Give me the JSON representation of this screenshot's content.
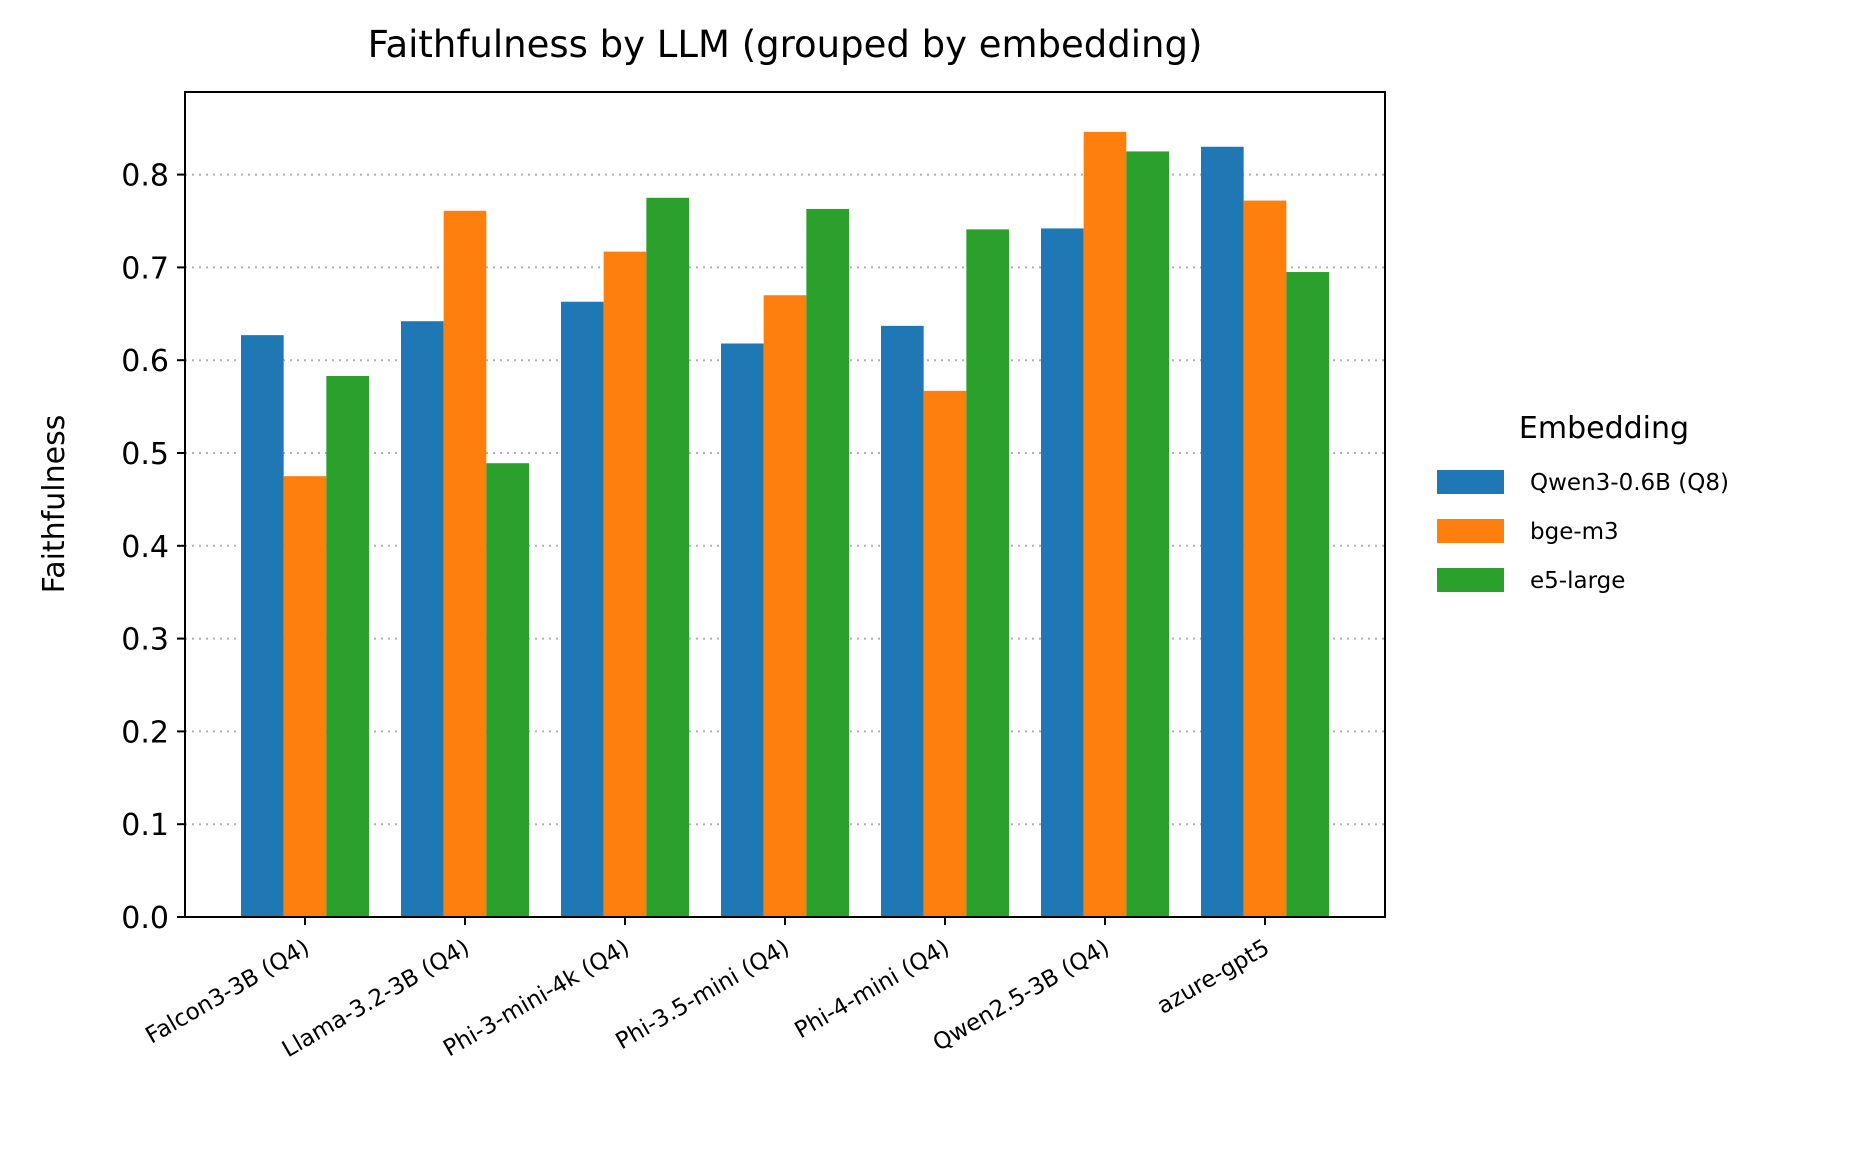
{
  "chart_data": {
    "type": "bar",
    "title": "Faithfulness by LLM (grouped by embedding)",
    "xlabel": "",
    "ylabel": "Faithfulness",
    "ylim": [
      0,
      0.889
    ],
    "yticks": [
      "0.0",
      "0.1",
      "0.2",
      "0.3",
      "0.4",
      "0.5",
      "0.6",
      "0.7",
      "0.8"
    ],
    "grid": "y-dotted",
    "categories": [
      "Falcon3-3B (Q4)",
      "Llama-3.2-3B (Q4)",
      "Phi-3-mini-4k (Q4)",
      "Phi-3.5-mini (Q4)",
      "Phi-4-mini (Q4)",
      "Qwen2.5-3B (Q4)",
      "azure-gpt5"
    ],
    "series": [
      {
        "name": "Qwen3-0.6B (Q8)",
        "color": "#1f77b4",
        "values": [
          0.627,
          0.642,
          0.663,
          0.618,
          0.637,
          0.742,
          0.83
        ]
      },
      {
        "name": "bge-m3",
        "color": "#ff7f0e",
        "values": [
          0.475,
          0.761,
          0.717,
          0.67,
          0.567,
          0.846,
          0.772
        ]
      },
      {
        "name": "e5-large",
        "color": "#2ca02c",
        "values": [
          0.583,
          0.489,
          0.775,
          0.763,
          0.741,
          0.825,
          0.695
        ]
      }
    ],
    "legend": {
      "title": "Embedding",
      "placement": "right"
    }
  }
}
